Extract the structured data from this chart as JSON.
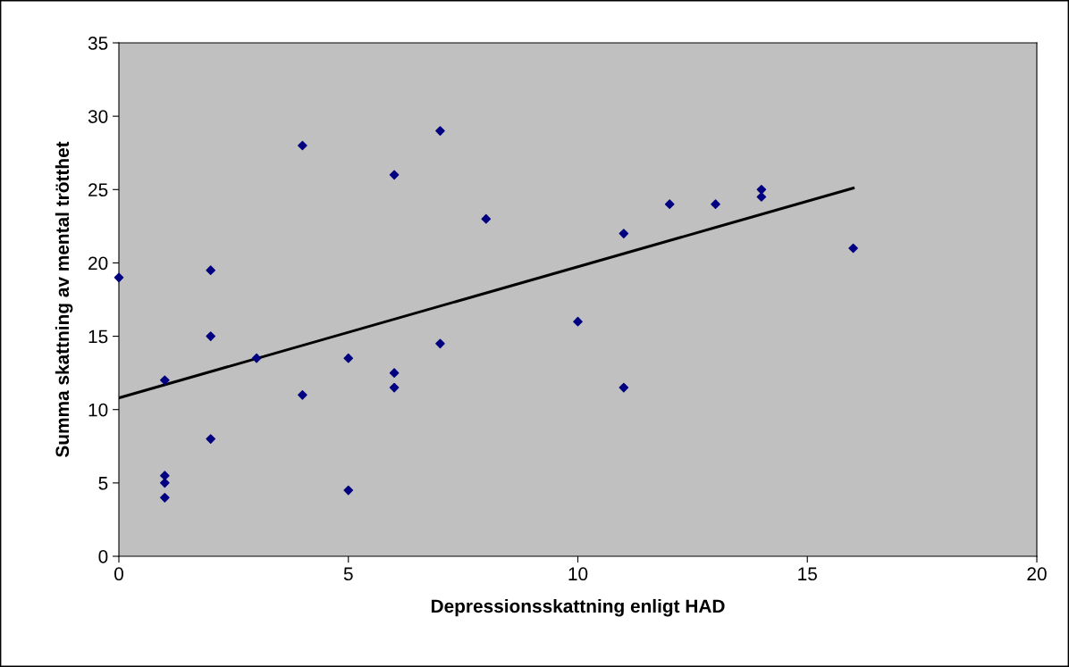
{
  "chart_data": {
    "type": "scatter",
    "xlabel": "Depressionsskattning enligt HAD",
    "ylabel": "Summa skattning av mental trötthet",
    "xlim": [
      0,
      20
    ],
    "xticks": [
      0,
      5,
      10,
      15,
      20
    ],
    "ylim": [
      0,
      35
    ],
    "yticks": [
      0,
      5,
      10,
      15,
      20,
      25,
      30,
      35
    ],
    "grid": false,
    "legend": false,
    "series": [
      {
        "marker": "diamond",
        "color": "#000080",
        "x": [
          0,
          1,
          1,
          1,
          1,
          2,
          2,
          2,
          3,
          4,
          4,
          5,
          5,
          6,
          6,
          6,
          7,
          7,
          8,
          10,
          11,
          11,
          12,
          13,
          14,
          14,
          16
        ],
        "values": [
          19,
          12,
          5.5,
          5,
          4,
          19.5,
          15,
          8,
          13.5,
          28,
          11,
          13.5,
          4.5,
          26,
          12.5,
          11.5,
          29,
          14.5,
          23,
          16,
          22,
          11.5,
          24,
          24,
          25,
          24.5,
          21
        ]
      },
      {
        "type": "line",
        "marker": "none",
        "color": "#000000",
        "x": [
          0,
          16
        ],
        "values": [
          10.8,
          25.1
        ]
      }
    ]
  }
}
